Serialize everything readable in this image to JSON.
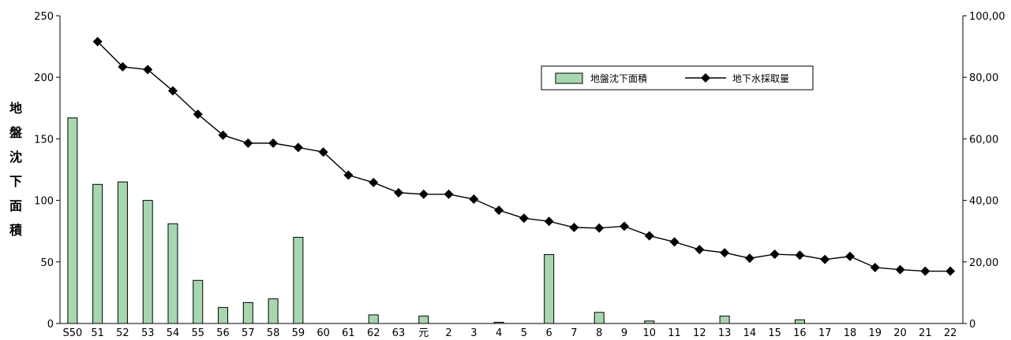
{
  "chart_data": {
    "type": "bar+line",
    "categories": [
      "S50",
      "51",
      "52",
      "53",
      "54",
      "55",
      "56",
      "57",
      "58",
      "59",
      "60",
      "61",
      "62",
      "63",
      "元",
      "2",
      "3",
      "4",
      "5",
      "6",
      "7",
      "8",
      "9",
      "10",
      "11",
      "12",
      "13",
      "14",
      "15",
      "16",
      "17",
      "18",
      "19",
      "20",
      "21",
      "22"
    ],
    "ylabel": "地盤沈下面積",
    "ylim_left": [
      0,
      250
    ],
    "yticks_left": [
      "0",
      "50",
      "100",
      "150",
      "200",
      "250"
    ],
    "ylim_right": [
      0,
      100000
    ],
    "yticks_right": [
      "0",
      "20,00",
      "40,00",
      "60,00",
      "80,00",
      "100,00"
    ],
    "legend_position": "top-right",
    "series": [
      {
        "name": "地盤沈下面積",
        "kind": "bar",
        "axis": "left",
        "color": "#a6d8b0",
        "values": [
          167,
          113,
          115,
          100,
          81,
          35,
          13,
          17,
          20,
          70,
          0,
          0,
          7,
          0,
          6,
          0,
          0,
          1,
          0,
          56,
          0,
          9,
          0,
          2,
          0,
          0,
          6,
          0,
          0,
          3,
          0,
          0,
          0,
          0,
          0,
          0
        ]
      },
      {
        "name": "地下水採取量",
        "kind": "line",
        "axis": "right",
        "color": "#000000",
        "values": [
          null,
          91600,
          83400,
          82500,
          75600,
          68000,
          61200,
          58600,
          58600,
          57200,
          55700,
          48200,
          45800,
          42500,
          42000,
          42000,
          40400,
          36800,
          34200,
          33200,
          31200,
          31000,
          31600,
          28500,
          26500,
          24000,
          23000,
          21200,
          22500,
          22200,
          20800,
          21800,
          18200,
          17500,
          17000,
          17000
        ]
      }
    ]
  }
}
